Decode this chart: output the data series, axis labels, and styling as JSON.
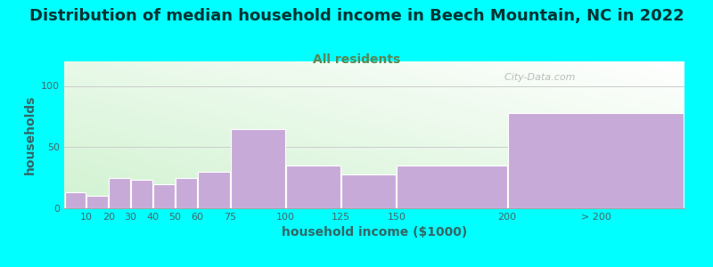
{
  "title": "Distribution of median household income in Beech Mountain, NC in 2022",
  "subtitle": "All residents",
  "xlabel": "household income ($1000)",
  "ylabel": "households",
  "background_color": "#00FFFF",
  "bar_color": "#c8aad8",
  "bar_edge_color": "#ffffff",
  "categories": [
    "10",
    "20",
    "30",
    "40",
    "50",
    "60",
    "75",
    "100",
    "125",
    "150",
    "200",
    "> 200"
  ],
  "values": [
    13,
    10,
    25,
    23,
    20,
    25,
    30,
    65,
    35,
    28,
    35,
    78
  ],
  "left_edges": [
    0,
    10,
    20,
    30,
    40,
    50,
    60,
    75,
    100,
    125,
    150,
    200
  ],
  "widths": [
    10,
    10,
    10,
    10,
    10,
    10,
    15,
    25,
    25,
    25,
    50,
    80
  ],
  "ylim": [
    0,
    120
  ],
  "yticks": [
    0,
    50,
    100
  ],
  "title_fontsize": 13,
  "subtitle_fontsize": 10,
  "axis_label_fontsize": 10,
  "tick_fontsize": 8,
  "title_color": "#003333",
  "subtitle_color": "#558855",
  "label_color": "#336666",
  "tick_color": "#446666",
  "watermark": "  City-Data.com",
  "xtick_positions": [
    10,
    20,
    30,
    40,
    50,
    60,
    75,
    100,
    125,
    150,
    200,
    240
  ],
  "xtick_labels": [
    "10",
    "20",
    "30",
    "40",
    "50",
    "60",
    "75",
    "100",
    "125",
    "150",
    "200",
    "> 200"
  ]
}
